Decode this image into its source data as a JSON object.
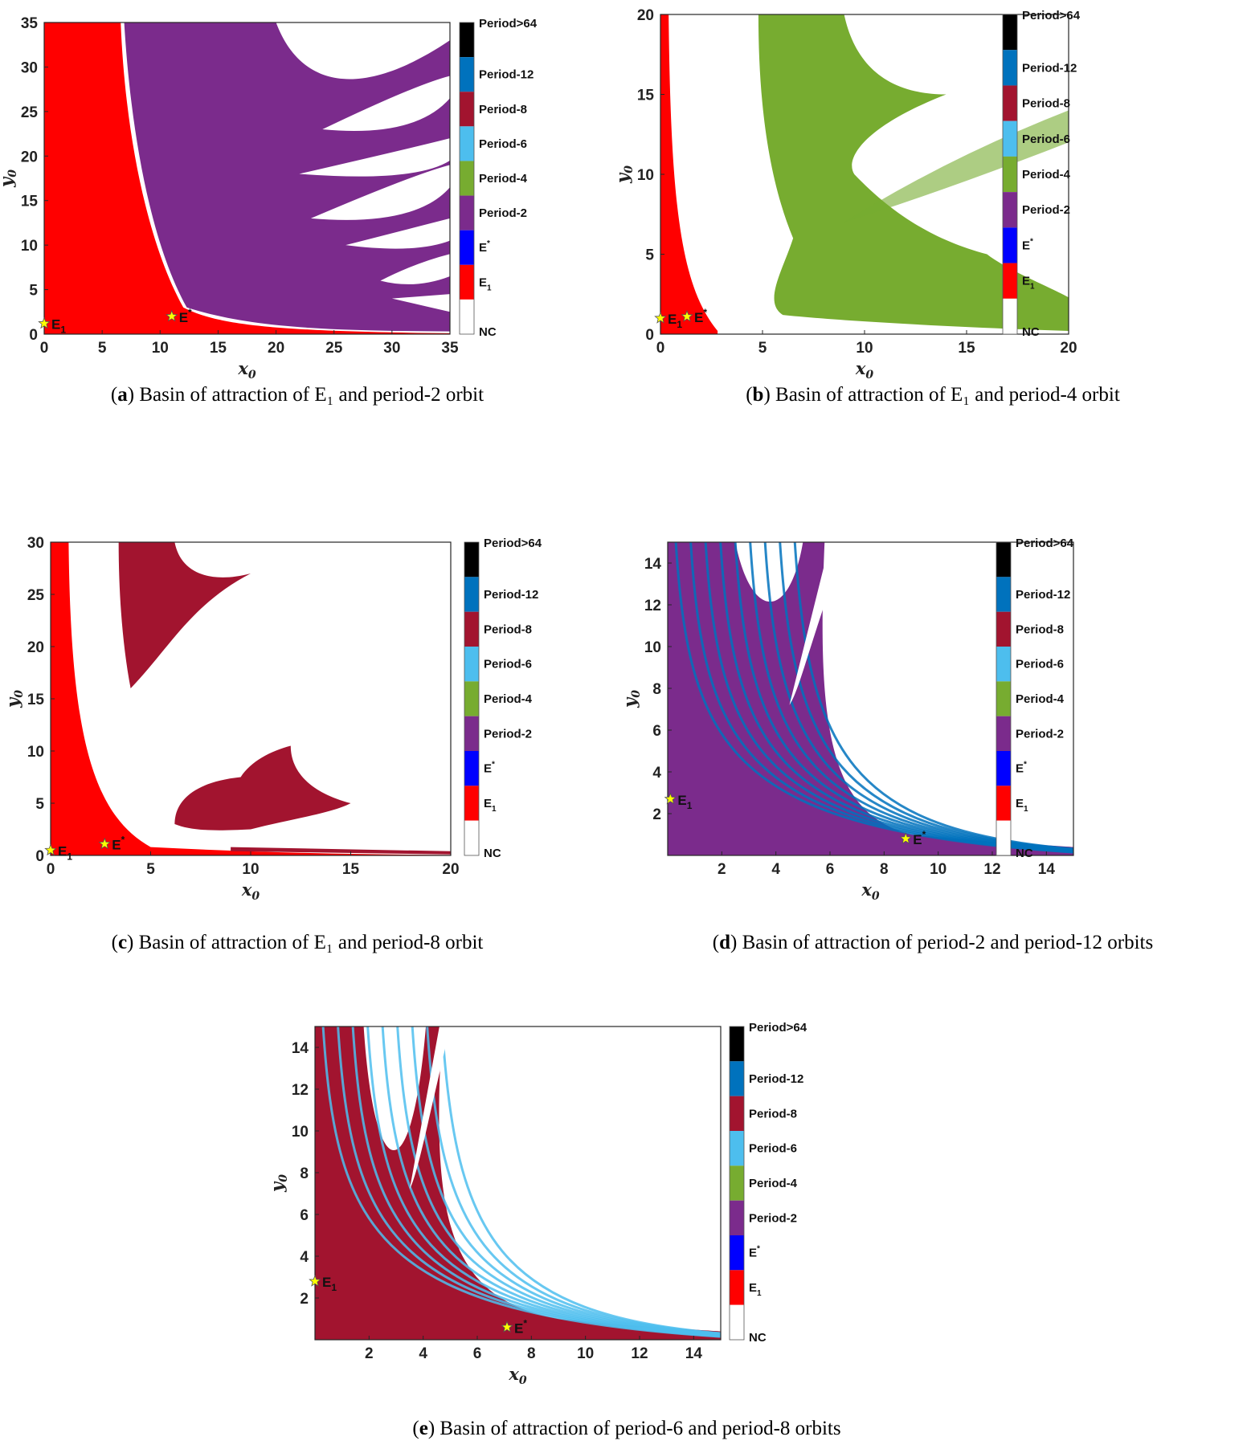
{
  "colors": {
    "E1": "#ff0000",
    "Estar": "#0000ff",
    "period2": "#7b2b8c",
    "period4": "#77ac30",
    "period6": "#4dbeee",
    "period8": "#a2142f",
    "period12": "#0072bd",
    "period64": "#000000",
    "NC": "#ffffff",
    "marker": "#ffff00"
  },
  "legend_labels": [
    "Period>64",
    "Period-12",
    "Period-8",
    "Period-6",
    "Period-4",
    "Period-2",
    "E*",
    "E1",
    "NC"
  ],
  "chart_data": [
    {
      "id": "a",
      "type": "heatmap",
      "caption_letter": "a",
      "caption_text": "Basin of attraction of E1 and period-2 orbit",
      "xlabel": "x0",
      "ylabel": "y0",
      "xlim": [
        0,
        35
      ],
      "ylim": [
        0,
        35
      ],
      "xticks": [
        0,
        5,
        10,
        15,
        20,
        25,
        30,
        35
      ],
      "yticks": [
        0,
        5,
        10,
        15,
        20,
        25,
        30,
        35
      ],
      "basins": [
        "E1",
        "period2"
      ],
      "points": [
        {
          "label": "E1",
          "x": 0,
          "y": 1.2
        },
        {
          "label": "E*",
          "x": 11,
          "y": 2
        }
      ]
    },
    {
      "id": "b",
      "type": "heatmap",
      "caption_letter": "b",
      "caption_text": "Basin of attraction of E1 and period-4 orbit",
      "xlabel": "x0",
      "ylabel": "y0",
      "xlim": [
        0,
        20
      ],
      "ylim": [
        0,
        20
      ],
      "xticks": [
        0,
        5,
        10,
        15,
        20
      ],
      "yticks": [
        0,
        5,
        10,
        15,
        20
      ],
      "basins": [
        "E1",
        "period4"
      ],
      "points": [
        {
          "label": "E1",
          "x": 0,
          "y": 1
        },
        {
          "label": "E*",
          "x": 1.3,
          "y": 1.1
        }
      ]
    },
    {
      "id": "c",
      "type": "heatmap",
      "caption_letter": "c",
      "caption_text": "Basin of attraction of E1 and period-8 orbit",
      "xlabel": "x0",
      "ylabel": "y0",
      "xlim": [
        0,
        20
      ],
      "ylim": [
        0,
        30
      ],
      "xticks": [
        0,
        5,
        10,
        15,
        20
      ],
      "yticks": [
        0,
        5,
        10,
        15,
        20,
        25,
        30
      ],
      "basins": [
        "E1",
        "period8"
      ],
      "points": [
        {
          "label": "E1",
          "x": 0,
          "y": 0.5
        },
        {
          "label": "E*",
          "x": 2.7,
          "y": 1.1
        }
      ]
    },
    {
      "id": "d",
      "type": "heatmap",
      "caption_letter": "d",
      "caption_text": "Basin of attraction of period-2 and period-12 orbits",
      "xlabel": "x0",
      "ylabel": "y0",
      "xlim": [
        0,
        15
      ],
      "ylim": [
        0,
        15
      ],
      "xticks": [
        2,
        4,
        6,
        8,
        10,
        12,
        14
      ],
      "yticks": [
        2,
        4,
        6,
        8,
        10,
        12,
        14
      ],
      "basins": [
        "period2",
        "period12"
      ],
      "points": [
        {
          "label": "E1",
          "x": 0.1,
          "y": 2.7
        },
        {
          "label": "E*",
          "x": 8.8,
          "y": 0.8
        }
      ]
    },
    {
      "id": "e",
      "type": "heatmap",
      "caption_letter": "e",
      "caption_text": "Basin of attraction of period-6 and period-8 orbits",
      "xlabel": "x0",
      "ylabel": "y0",
      "xlim": [
        0,
        15
      ],
      "ylim": [
        0,
        15
      ],
      "xticks": [
        2,
        4,
        6,
        8,
        10,
        12,
        14
      ],
      "yticks": [
        2,
        4,
        6,
        8,
        10,
        12,
        14
      ],
      "basins": [
        "period8",
        "period6"
      ],
      "points": [
        {
          "label": "E1",
          "x": 0,
          "y": 2.8
        },
        {
          "label": "E*",
          "x": 7.1,
          "y": 0.6
        }
      ]
    }
  ]
}
